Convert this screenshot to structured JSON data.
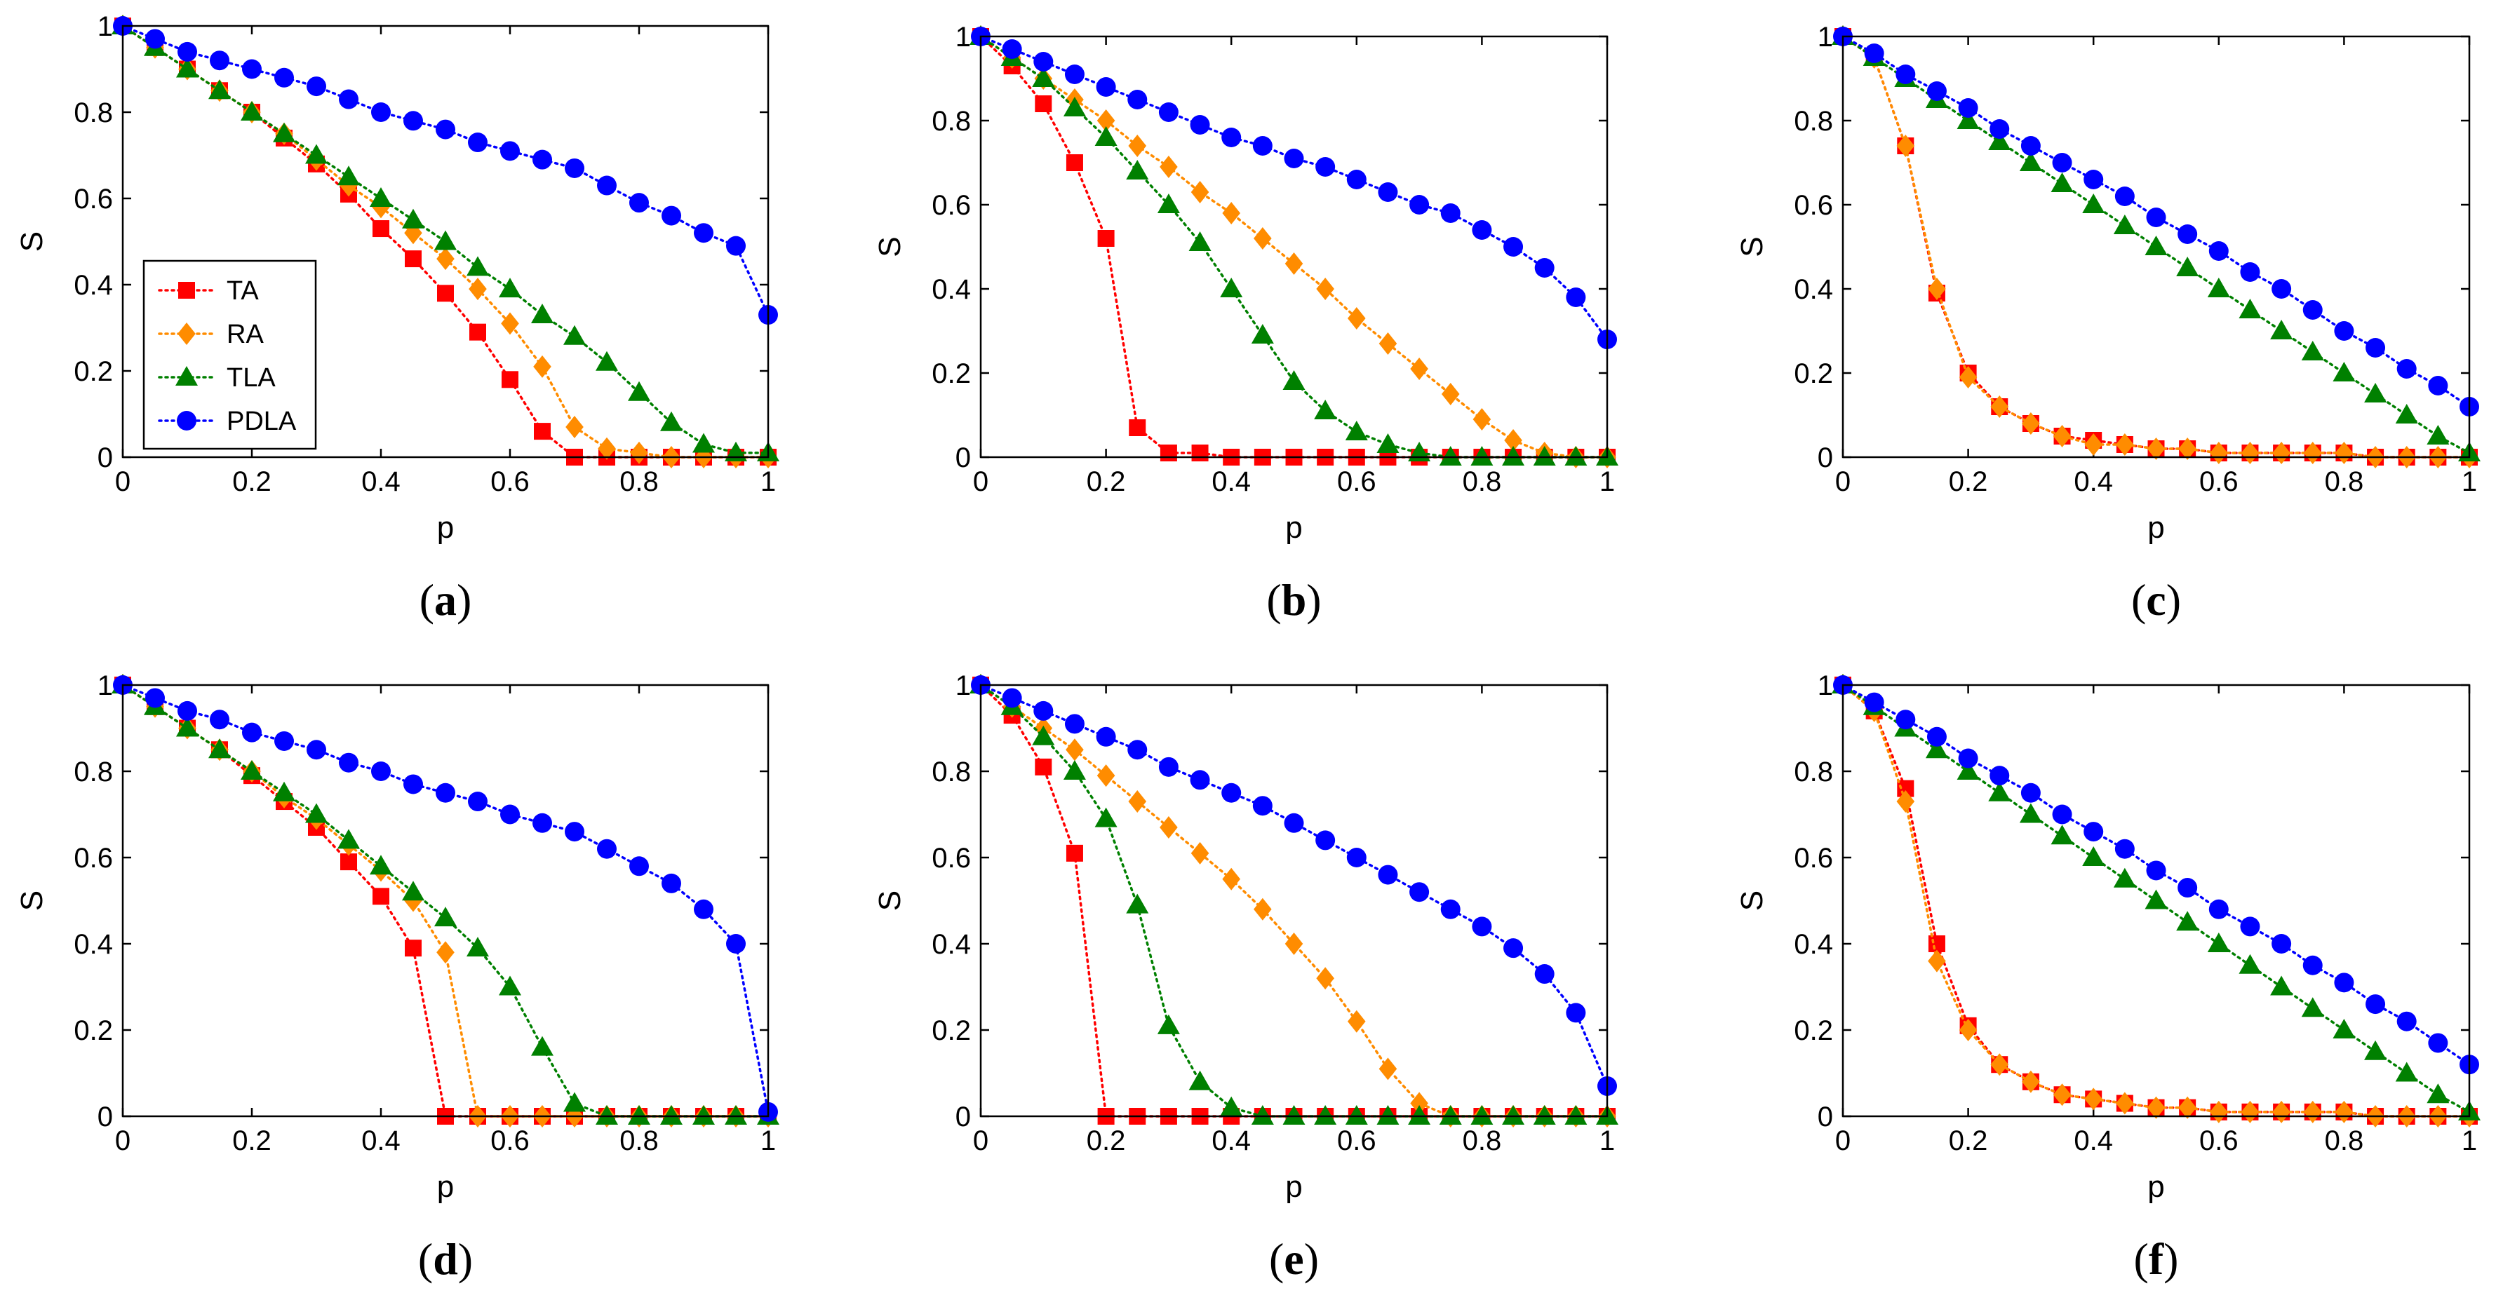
{
  "figure": {
    "legend": [
      {
        "name": "TA",
        "color": "#ff0000",
        "marker": "square"
      },
      {
        "name": "RA",
        "color": "#ff8c00",
        "marker": "diamond"
      },
      {
        "name": "TLA",
        "color": "#008000",
        "marker": "triangle"
      },
      {
        "name": "PDLA",
        "color": "#0000ff",
        "marker": "circle"
      }
    ],
    "x_ticks": [
      "0",
      "0.2",
      "0.4",
      "0.6",
      "0.8",
      "1"
    ],
    "y_ticks": [
      "0",
      "0.2",
      "0.4",
      "0.6",
      "0.8",
      "1"
    ]
  },
  "chart_data": [
    {
      "id": "a",
      "panel_label": "a",
      "type": "line",
      "xlabel": "p",
      "ylabel": "S",
      "xlim": [
        0,
        1
      ],
      "ylim": [
        0,
        1
      ],
      "legend_position": "bottom-left",
      "x": [
        0,
        0.05,
        0.1,
        0.15,
        0.2,
        0.25,
        0.3,
        0.35,
        0.4,
        0.45,
        0.5,
        0.55,
        0.6,
        0.65,
        0.7,
        0.75,
        0.8,
        0.85,
        0.9,
        0.95,
        1
      ],
      "series": [
        {
          "name": "TA",
          "values": [
            1,
            0.95,
            0.9,
            0.85,
            0.8,
            0.74,
            0.68,
            0.61,
            0.53,
            0.46,
            0.38,
            0.29,
            0.18,
            0.06,
            0,
            0,
            0,
            0,
            0,
            0,
            0
          ]
        },
        {
          "name": "RA",
          "values": [
            1,
            0.95,
            0.9,
            0.85,
            0.8,
            0.75,
            0.69,
            0.63,
            0.58,
            0.52,
            0.46,
            0.39,
            0.31,
            0.21,
            0.07,
            0.02,
            0.01,
            0,
            0,
            0,
            0
          ]
        },
        {
          "name": "TLA",
          "values": [
            1,
            0.95,
            0.9,
            0.85,
            0.8,
            0.75,
            0.7,
            0.65,
            0.6,
            0.55,
            0.5,
            0.44,
            0.39,
            0.33,
            0.28,
            0.22,
            0.15,
            0.08,
            0.03,
            0.01,
            0.01
          ]
        },
        {
          "name": "PDLA",
          "values": [
            1,
            0.97,
            0.94,
            0.92,
            0.9,
            0.88,
            0.86,
            0.83,
            0.8,
            0.78,
            0.76,
            0.73,
            0.71,
            0.69,
            0.67,
            0.63,
            0.59,
            0.56,
            0.52,
            0.49,
            0.33
          ]
        }
      ]
    },
    {
      "id": "b",
      "panel_label": "b",
      "type": "line",
      "xlabel": "p",
      "ylabel": "S",
      "xlim": [
        0,
        1
      ],
      "ylim": [
        0,
        1
      ],
      "x": [
        0,
        0.05,
        0.1,
        0.15,
        0.2,
        0.25,
        0.3,
        0.35,
        0.4,
        0.45,
        0.5,
        0.55,
        0.6,
        0.65,
        0.7,
        0.75,
        0.8,
        0.85,
        0.9,
        0.95,
        1
      ],
      "series": [
        {
          "name": "TA",
          "values": [
            1,
            0.93,
            0.84,
            0.7,
            0.52,
            0.07,
            0.01,
            0.01,
            0,
            0,
            0,
            0,
            0,
            0,
            0,
            0,
            0,
            0,
            0,
            0,
            0
          ]
        },
        {
          "name": "RA",
          "values": [
            1,
            0.95,
            0.9,
            0.85,
            0.8,
            0.74,
            0.69,
            0.63,
            0.58,
            0.52,
            0.46,
            0.4,
            0.33,
            0.27,
            0.21,
            0.15,
            0.09,
            0.04,
            0.01,
            0,
            0
          ]
        },
        {
          "name": "TLA",
          "values": [
            1,
            0.95,
            0.9,
            0.83,
            0.76,
            0.68,
            0.6,
            0.51,
            0.4,
            0.29,
            0.18,
            0.11,
            0.06,
            0.03,
            0.01,
            0,
            0,
            0,
            0,
            0,
            0
          ]
        },
        {
          "name": "PDLA",
          "values": [
            1,
            0.97,
            0.94,
            0.91,
            0.88,
            0.85,
            0.82,
            0.79,
            0.76,
            0.74,
            0.71,
            0.69,
            0.66,
            0.63,
            0.6,
            0.58,
            0.54,
            0.5,
            0.45,
            0.38,
            0.28
          ]
        }
      ]
    },
    {
      "id": "c",
      "panel_label": "c",
      "type": "line",
      "xlabel": "p",
      "ylabel": "S",
      "xlim": [
        0,
        1
      ],
      "ylim": [
        0,
        1
      ],
      "x": [
        0,
        0.05,
        0.1,
        0.15,
        0.2,
        0.25,
        0.3,
        0.35,
        0.4,
        0.45,
        0.5,
        0.55,
        0.6,
        0.65,
        0.7,
        0.75,
        0.8,
        0.85,
        0.9,
        0.95,
        1
      ],
      "series": [
        {
          "name": "TA",
          "values": [
            1,
            0.95,
            0.74,
            0.39,
            0.2,
            0.12,
            0.08,
            0.05,
            0.04,
            0.03,
            0.02,
            0.02,
            0.01,
            0.01,
            0.01,
            0.01,
            0.01,
            0,
            0,
            0,
            0
          ]
        },
        {
          "name": "RA",
          "values": [
            1,
            0.95,
            0.74,
            0.4,
            0.19,
            0.12,
            0.08,
            0.05,
            0.03,
            0.03,
            0.02,
            0.02,
            0.01,
            0.01,
            0.01,
            0.01,
            0.01,
            0,
            0,
            0,
            0
          ]
        },
        {
          "name": "TLA",
          "values": [
            1,
            0.95,
            0.9,
            0.85,
            0.8,
            0.75,
            0.7,
            0.65,
            0.6,
            0.55,
            0.5,
            0.45,
            0.4,
            0.35,
            0.3,
            0.25,
            0.2,
            0.15,
            0.1,
            0.05,
            0.01
          ]
        },
        {
          "name": "PDLA",
          "values": [
            1,
            0.96,
            0.91,
            0.87,
            0.83,
            0.78,
            0.74,
            0.7,
            0.66,
            0.62,
            0.57,
            0.53,
            0.49,
            0.44,
            0.4,
            0.35,
            0.3,
            0.26,
            0.21,
            0.17,
            0.12
          ]
        }
      ]
    },
    {
      "id": "d",
      "panel_label": "d",
      "type": "line",
      "xlabel": "p",
      "ylabel": "S",
      "xlim": [
        0,
        1
      ],
      "ylim": [
        0,
        1
      ],
      "x": [
        0,
        0.05,
        0.1,
        0.15,
        0.2,
        0.25,
        0.3,
        0.35,
        0.4,
        0.45,
        0.5,
        0.55,
        0.6,
        0.65,
        0.7,
        0.75,
        0.8,
        0.85,
        0.9,
        0.95,
        1
      ],
      "series": [
        {
          "name": "TA",
          "values": [
            1,
            0.95,
            0.9,
            0.85,
            0.79,
            0.73,
            0.67,
            0.59,
            0.51,
            0.39,
            0,
            0,
            0,
            0,
            0,
            0,
            0,
            0,
            0,
            0,
            0
          ]
        },
        {
          "name": "RA",
          "values": [
            1,
            0.95,
            0.9,
            0.85,
            0.8,
            0.74,
            0.69,
            0.63,
            0.57,
            0.5,
            0.38,
            0,
            0,
            0,
            0,
            0,
            0,
            0,
            0,
            0,
            0
          ]
        },
        {
          "name": "TLA",
          "values": [
            1,
            0.95,
            0.9,
            0.85,
            0.8,
            0.75,
            0.7,
            0.64,
            0.58,
            0.52,
            0.46,
            0.39,
            0.3,
            0.16,
            0.03,
            0,
            0,
            0,
            0,
            0,
            0
          ]
        },
        {
          "name": "PDLA",
          "values": [
            1,
            0.97,
            0.94,
            0.92,
            0.89,
            0.87,
            0.85,
            0.82,
            0.8,
            0.77,
            0.75,
            0.73,
            0.7,
            0.68,
            0.66,
            0.62,
            0.58,
            0.54,
            0.48,
            0.4,
            0.01
          ]
        }
      ]
    },
    {
      "id": "e",
      "panel_label": "e",
      "type": "line",
      "xlabel": "p",
      "ylabel": "S",
      "xlim": [
        0,
        1
      ],
      "ylim": [
        0,
        1
      ],
      "x": [
        0,
        0.05,
        0.1,
        0.15,
        0.2,
        0.25,
        0.3,
        0.35,
        0.4,
        0.45,
        0.5,
        0.55,
        0.6,
        0.65,
        0.7,
        0.75,
        0.8,
        0.85,
        0.9,
        0.95,
        1
      ],
      "series": [
        {
          "name": "TA",
          "values": [
            1,
            0.93,
            0.81,
            0.61,
            0,
            0,
            0,
            0,
            0,
            0,
            0,
            0,
            0,
            0,
            0,
            0,
            0,
            0,
            0,
            0,
            0
          ]
        },
        {
          "name": "RA",
          "values": [
            1,
            0.95,
            0.9,
            0.85,
            0.79,
            0.73,
            0.67,
            0.61,
            0.55,
            0.48,
            0.4,
            0.32,
            0.22,
            0.11,
            0.03,
            0,
            0,
            0,
            0,
            0,
            0
          ]
        },
        {
          "name": "TLA",
          "values": [
            1,
            0.95,
            0.88,
            0.8,
            0.69,
            0.49,
            0.21,
            0.08,
            0.02,
            0,
            0,
            0,
            0,
            0,
            0,
            0,
            0,
            0,
            0,
            0,
            0
          ]
        },
        {
          "name": "PDLA",
          "values": [
            1,
            0.97,
            0.94,
            0.91,
            0.88,
            0.85,
            0.81,
            0.78,
            0.75,
            0.72,
            0.68,
            0.64,
            0.6,
            0.56,
            0.52,
            0.48,
            0.44,
            0.39,
            0.33,
            0.24,
            0.07
          ]
        }
      ]
    },
    {
      "id": "f",
      "panel_label": "f",
      "type": "line",
      "xlabel": "p",
      "ylabel": "S",
      "xlim": [
        0,
        1
      ],
      "ylim": [
        0,
        1
      ],
      "x": [
        0,
        0.05,
        0.1,
        0.15,
        0.2,
        0.25,
        0.3,
        0.35,
        0.4,
        0.45,
        0.5,
        0.55,
        0.6,
        0.65,
        0.7,
        0.75,
        0.8,
        0.85,
        0.9,
        0.95,
        1
      ],
      "series": [
        {
          "name": "TA",
          "values": [
            1,
            0.94,
            0.76,
            0.4,
            0.21,
            0.12,
            0.08,
            0.05,
            0.04,
            0.03,
            0.02,
            0.02,
            0.01,
            0.01,
            0.01,
            0.01,
            0.01,
            0,
            0,
            0,
            0
          ]
        },
        {
          "name": "RA",
          "values": [
            1,
            0.94,
            0.73,
            0.36,
            0.2,
            0.12,
            0.08,
            0.05,
            0.04,
            0.03,
            0.02,
            0.02,
            0.01,
            0.01,
            0.01,
            0.01,
            0.01,
            0,
            0,
            0,
            0
          ]
        },
        {
          "name": "TLA",
          "values": [
            1,
            0.95,
            0.9,
            0.85,
            0.8,
            0.75,
            0.7,
            0.65,
            0.6,
            0.55,
            0.5,
            0.45,
            0.4,
            0.35,
            0.3,
            0.25,
            0.2,
            0.15,
            0.1,
            0.05,
            0.01
          ]
        },
        {
          "name": "PDLA",
          "values": [
            1,
            0.96,
            0.92,
            0.88,
            0.83,
            0.79,
            0.75,
            0.7,
            0.66,
            0.62,
            0.57,
            0.53,
            0.48,
            0.44,
            0.4,
            0.35,
            0.31,
            0.26,
            0.22,
            0.17,
            0.12
          ]
        }
      ]
    }
  ]
}
